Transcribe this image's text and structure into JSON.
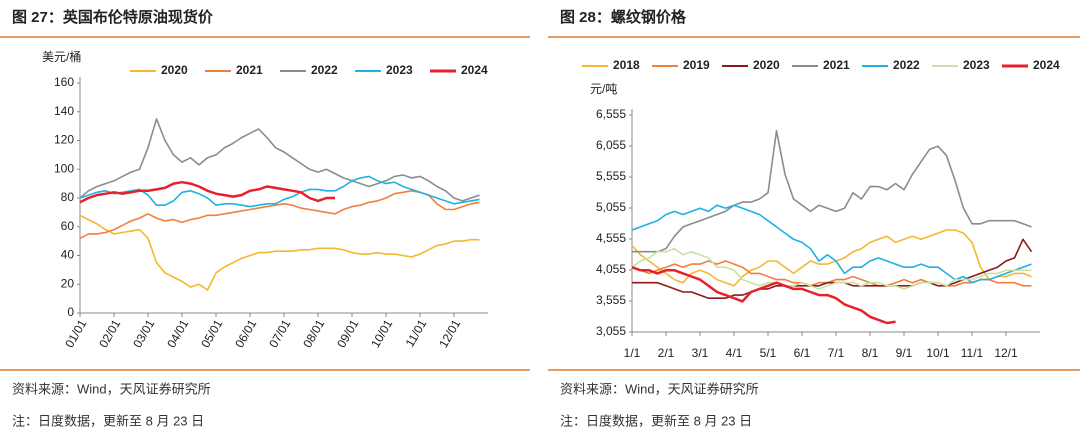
{
  "chart_data": [
    {
      "type": "line",
      "title": "图 27：英国布伦特原油现货价",
      "y_label": "美元/桶",
      "categories": [
        "01/01",
        null,
        null,
        null,
        "02/01",
        null,
        null,
        null,
        "03/01",
        null,
        null,
        null,
        "04/01",
        null,
        null,
        null,
        "05/01",
        null,
        null,
        null,
        "06/01",
        null,
        null,
        null,
        "07/01",
        null,
        null,
        null,
        "08/01",
        null,
        null,
        null,
        "09/01",
        null,
        null,
        null,
        "10/01",
        null,
        null,
        null,
        "11/01",
        null,
        null,
        null,
        "12/01",
        null,
        null,
        null
      ],
      "ylim": [
        0,
        160
      ],
      "yticks": [
        0,
        20,
        40,
        60,
        80,
        100,
        120,
        140,
        160
      ],
      "legend": "top",
      "series": [
        {
          "name": "2020",
          "color": "#f5b731",
          "values": [
            68,
            65,
            62,
            58,
            55,
            56,
            57,
            58,
            52,
            35,
            28,
            25,
            22,
            18,
            20,
            16,
            28,
            32,
            35,
            38,
            40,
            42,
            42,
            43,
            43,
            43,
            44,
            44,
            45,
            45,
            45,
            44,
            42,
            41,
            41,
            42,
            41,
            41,
            40,
            39,
            41,
            44,
            47,
            48,
            50,
            50,
            51,
            51
          ]
        },
        {
          "name": "2021",
          "color": "#f07f3c",
          "values": [
            52,
            55,
            55,
            56,
            58,
            61,
            64,
            66,
            69,
            66,
            64,
            65,
            63,
            65,
            66,
            68,
            68,
            69,
            70,
            71,
            72,
            73,
            74,
            75,
            76,
            75,
            73,
            72,
            71,
            70,
            69,
            72,
            74,
            75,
            77,
            78,
            80,
            83,
            84,
            85,
            84,
            82,
            76,
            72,
            72,
            74,
            76,
            77
          ]
        },
        {
          "name": "2022",
          "color": "#8c8c8c",
          "values": [
            80,
            85,
            88,
            90,
            92,
            95,
            98,
            100,
            115,
            135,
            120,
            110,
            105,
            108,
            103,
            108,
            110,
            115,
            118,
            122,
            125,
            128,
            122,
            115,
            112,
            108,
            104,
            100,
            98,
            100,
            97,
            94,
            92,
            90,
            88,
            90,
            92,
            95,
            96,
            94,
            95,
            92,
            88,
            85,
            80,
            78,
            80,
            82
          ]
        },
        {
          "name": "2023",
          "color": "#1fb1e6",
          "values": [
            80,
            82,
            84,
            85,
            83,
            84,
            85,
            86,
            82,
            75,
            75,
            78,
            84,
            85,
            83,
            80,
            75,
            76,
            76,
            75,
            74,
            75,
            76,
            76,
            79,
            81,
            84,
            86,
            86,
            85,
            85,
            88,
            92,
            94,
            95,
            92,
            90,
            91,
            88,
            86,
            84,
            82,
            80,
            78,
            76,
            77,
            78,
            79
          ]
        },
        {
          "name": "2024",
          "color": "#e8202a",
          "values": [
            77,
            80,
            82,
            83,
            84,
            83,
            84,
            85,
            85,
            86,
            87,
            90,
            91,
            90,
            88,
            85,
            83,
            82,
            81,
            82,
            85,
            86,
            88,
            87,
            86,
            85,
            84,
            80,
            78,
            80,
            80,
            null,
            null,
            null,
            null,
            null,
            null,
            null,
            null,
            null,
            null,
            null,
            null,
            null,
            null,
            null,
            null,
            null
          ]
        }
      ],
      "source": "资料来源：Wind，天风证券研究所",
      "note": "注：日度数据，更新至 8 月 23 日"
    },
    {
      "type": "line",
      "title": "图 28：螺纹钢价格",
      "y_label": "元/吨",
      "categories": [
        "1/1",
        null,
        null,
        null,
        "2/1",
        null,
        null,
        null,
        "3/1",
        null,
        null,
        null,
        "4/1",
        null,
        null,
        null,
        "5/1",
        null,
        null,
        null,
        "6/1",
        null,
        null,
        null,
        "7/1",
        null,
        null,
        null,
        "8/1",
        null,
        null,
        null,
        "9/1",
        null,
        null,
        null,
        "10/1",
        null,
        null,
        null,
        "11/1",
        null,
        null,
        null,
        "12/1",
        null,
        null,
        null
      ],
      "ylim": [
        3055,
        6555
      ],
      "yticks": [
        {
          "value": 3055,
          "label": "3,055"
        },
        {
          "value": 3555,
          "label": "3,555"
        },
        {
          "value": 4055,
          "label": "4,055"
        },
        {
          "value": 4555,
          "label": "4,555"
        },
        {
          "value": 5055,
          "label": "5,055"
        },
        {
          "value": 5555,
          "label": "5,555"
        },
        {
          "value": 6055,
          "label": "6,055"
        },
        {
          "value": 6555,
          "label": "6,555"
        }
      ],
      "legend": "top",
      "series": [
        {
          "name": "2018",
          "color": "#f5b731",
          "values": [
            4450,
            4300,
            4200,
            4100,
            4000,
            3900,
            3850,
            4000,
            4050,
            4000,
            3900,
            3850,
            3800,
            3950,
            4050,
            4100,
            4200,
            4200,
            4100,
            4000,
            4100,
            4200,
            4150,
            4150,
            4200,
            4250,
            4350,
            4400,
            4500,
            4550,
            4600,
            4500,
            4550,
            4600,
            4550,
            4600,
            4650,
            4700,
            4700,
            4650,
            4500,
            4100,
            3900,
            3950,
            3950,
            4000,
            4000,
            3950
          ]
        },
        {
          "name": "2019",
          "color": "#f07f3c",
          "values": [
            4100,
            4050,
            4000,
            4050,
            4100,
            4150,
            4100,
            4150,
            4150,
            4200,
            4150,
            4200,
            4150,
            4100,
            4000,
            4000,
            3950,
            3900,
            3900,
            3850,
            3850,
            3800,
            3850,
            3850,
            3900,
            3900,
            3950,
            3900,
            3850,
            3800,
            3800,
            3850,
            3900,
            3850,
            3900,
            3850,
            3850,
            3800,
            3800,
            3850,
            3850,
            3900,
            3900,
            3850,
            3850,
            3850,
            3800,
            3800
          ]
        },
        {
          "name": "2020",
          "color": "#8b1a1a",
          "values": [
            3850,
            3850,
            3850,
            3850,
            3800,
            3750,
            3700,
            3700,
            3650,
            3600,
            3600,
            3600,
            3650,
            3650,
            3700,
            3750,
            3750,
            3800,
            3800,
            3800,
            3800,
            3800,
            3800,
            3850,
            3850,
            3850,
            3800,
            3800,
            3800,
            3800,
            3800,
            3800,
            3800,
            3800,
            3850,
            3850,
            3800,
            3800,
            3850,
            3900,
            3950,
            4000,
            4050,
            4100,
            4200,
            4250,
            4550,
            4350
          ]
        },
        {
          "name": "2021",
          "color": "#8c8c8c",
          "values": [
            4350,
            4350,
            4350,
            4350,
            4400,
            4600,
            4750,
            4800,
            4850,
            4900,
            4950,
            5000,
            5100,
            5150,
            5150,
            5200,
            5300,
            6300,
            5600,
            5200,
            5100,
            5000,
            5100,
            5050,
            5000,
            5050,
            5300,
            5200,
            5400,
            5400,
            5350,
            5450,
            5350,
            5600,
            5800,
            6000,
            6050,
            5900,
            5500,
            5050,
            4800,
            4800,
            4850,
            4850,
            4850,
            4850,
            4800,
            4750
          ]
        },
        {
          "name": "2022",
          "color": "#1fb1e6",
          "values": [
            4700,
            4750,
            4800,
            4850,
            4950,
            5000,
            4950,
            5000,
            5050,
            5000,
            5100,
            5050,
            5100,
            5050,
            5000,
            4950,
            4850,
            4750,
            4650,
            4550,
            4500,
            4400,
            4200,
            4300,
            4200,
            4000,
            4100,
            4100,
            4200,
            4250,
            4200,
            4150,
            4100,
            4100,
            4150,
            4100,
            4100,
            4000,
            3900,
            3950,
            3850,
            3900,
            3900,
            3950,
            4000,
            4050,
            4100,
            4150
          ]
        },
        {
          "name": "2023",
          "color": "#c6e3a4",
          "values": [
            4100,
            4200,
            4250,
            4350,
            4350,
            4400,
            4300,
            4350,
            4300,
            4250,
            4100,
            4100,
            4050,
            3900,
            3850,
            3800,
            3850,
            3850,
            3800,
            3800,
            3850,
            3800,
            3750,
            3800,
            3850,
            3850,
            3850,
            3800,
            3850,
            3850,
            3800,
            3800,
            3750,
            3800,
            3850,
            3850,
            3850,
            3800,
            3900,
            3900,
            3900,
            3950,
            4000,
            4000,
            4050,
            4050,
            4050,
            4050
          ]
        },
        {
          "name": "2024",
          "color": "#e8202a",
          "values": [
            4100,
            4050,
            4050,
            4000,
            4050,
            4050,
            4000,
            3950,
            3900,
            3800,
            3700,
            3650,
            3600,
            3550,
            3700,
            3750,
            3800,
            3850,
            3800,
            3750,
            3750,
            3700,
            3650,
            3650,
            3600,
            3500,
            3450,
            3400,
            3300,
            3250,
            3200,
            3220,
            null,
            null,
            null,
            null,
            null,
            null,
            null,
            null,
            null,
            null,
            null,
            null,
            null,
            null,
            null,
            null
          ]
        }
      ],
      "source": "资料来源：Wind，天风证券研究所",
      "note": "注：日度数据，更新至 8 月 23 日"
    }
  ]
}
